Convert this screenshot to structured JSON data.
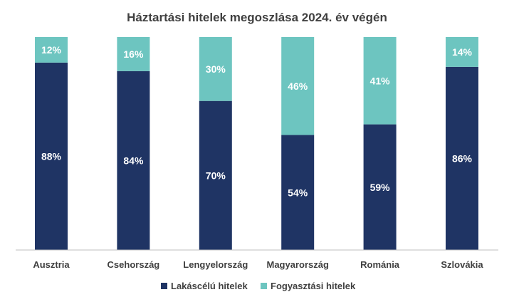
{
  "chart_data": {
    "type": "bar",
    "stacked": true,
    "percent_stacked": true,
    "title": "Háztartási hitelek megoszlása 2024. év végén",
    "categories": [
      "Ausztria",
      "Csehország",
      "Lengyelország",
      "Magyarország",
      "Románia",
      "Szlovákia"
    ],
    "series": [
      {
        "name": "Lakáscélú hitelek",
        "values": [
          88,
          84,
          70,
          54,
          59,
          86
        ],
        "labels": [
          "88%",
          "84%",
          "70%",
          "54%",
          "59%",
          "86%"
        ],
        "color": "#1f3464"
      },
      {
        "name": "Fogyasztási hitelek",
        "values": [
          12,
          16,
          30,
          46,
          41,
          14
        ],
        "labels": [
          "12%",
          "16%",
          "30%",
          "46%",
          "41%",
          "14%"
        ],
        "color": "#6dc5c0"
      }
    ],
    "ylim": [
      0,
      100
    ],
    "grid": false,
    "legend": "bottom"
  }
}
